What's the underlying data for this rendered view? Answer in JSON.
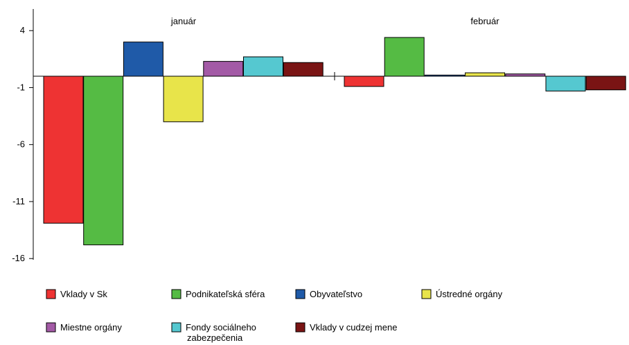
{
  "chart_data": {
    "type": "bar",
    "categories": [
      "január",
      "február"
    ],
    "ylim": [
      -16,
      6
    ],
    "yticks": [
      4,
      -1,
      -6,
      -11,
      -16
    ],
    "grid": false,
    "legend_position": "bottom",
    "series": [
      {
        "name": "Vklady v Sk",
        "color": "#ee3333",
        "values": [
          -12.9,
          -0.9
        ]
      },
      {
        "name": "Podnikateľská sféra",
        "color": "#55bb44",
        "values": [
          -14.8,
          3.4
        ]
      },
      {
        "name": "Obyvateľstvo",
        "color": "#1f5aa8",
        "values": [
          3.0,
          0.1
        ]
      },
      {
        "name": "Ústredné orgány",
        "color": "#e8e44a",
        "values": [
          -4.0,
          0.3
        ]
      },
      {
        "name": "Miestne orgány",
        "color": "#a35aa6",
        "values": [
          1.3,
          0.2
        ]
      },
      {
        "name": "Fondy sociálneho zabezpečenia",
        "color": "#55c8d0",
        "values": [
          1.7,
          -1.3
        ]
      },
      {
        "name": "Vklady v cudzej mene",
        "color": "#7a1414",
        "values": [
          1.2,
          -1.2
        ]
      }
    ]
  }
}
